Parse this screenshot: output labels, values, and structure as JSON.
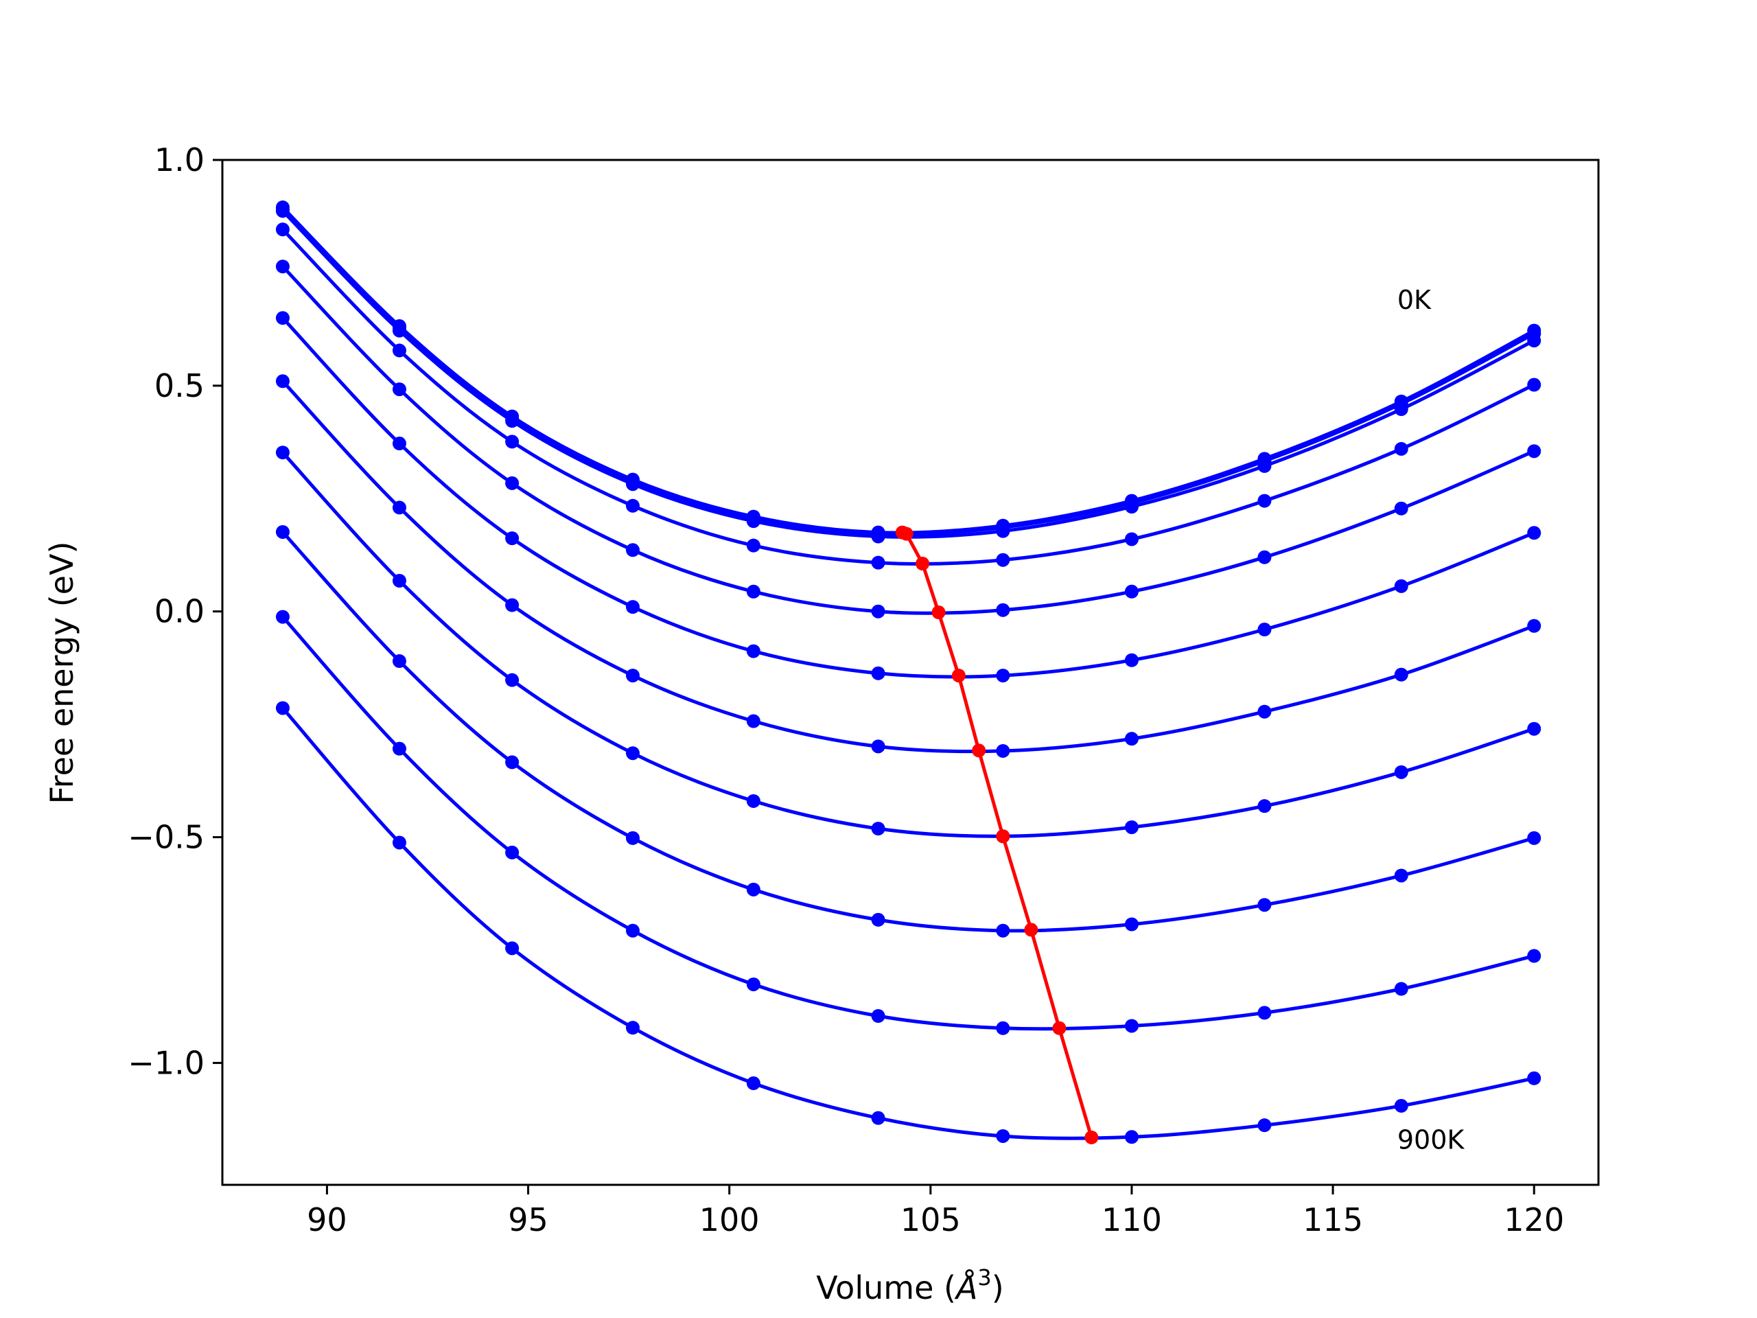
{
  "chart_data": {
    "type": "line",
    "xlabel_text": "Volume (",
    "xlabel_unit": "Å",
    "xlabel_exp": "3",
    "xlabel_close": ")",
    "ylabel": "Free energy (eV)",
    "xlim": [
      87.4,
      121.6
    ],
    "ylim": [
      -1.27,
      1.0
    ],
    "x_ticks": [
      90,
      95,
      100,
      105,
      110,
      115,
      120
    ],
    "y_ticks": [
      1.0,
      0.5,
      0.0,
      -0.5,
      -1.0
    ],
    "x_tick_labels": [
      "90",
      "95",
      "100",
      "105",
      "110",
      "115",
      "120"
    ],
    "y_tick_labels": [
      "1.0",
      "0.5",
      "0.0",
      "−0.5",
      "−1.0"
    ],
    "annotations": [
      {
        "text": "0K",
        "x": 116.6,
        "y": 0.67
      },
      {
        "text": "900K",
        "x": 116.6,
        "y": -1.19
      }
    ],
    "x": [
      88.9,
      91.8,
      94.6,
      97.6,
      100.6,
      103.7,
      106.8,
      110.0,
      113.3,
      116.7,
      120.0
    ],
    "series": [
      {
        "values": [
          0.895,
          0.632,
          0.432,
          0.292,
          0.21,
          0.175,
          0.19,
          0.245,
          0.338,
          0.465,
          0.622
        ]
      },
      {
        "values": [
          0.89,
          0.628,
          0.428,
          0.288,
          0.206,
          0.172,
          0.186,
          0.24,
          0.333,
          0.46,
          0.615
        ]
      },
      {
        "values": [
          0.887,
          0.622,
          0.422,
          0.282,
          0.2,
          0.166,
          0.178,
          0.232,
          0.322,
          0.448,
          0.6
        ]
      },
      {
        "values": [
          0.846,
          0.578,
          0.376,
          0.234,
          0.146,
          0.108,
          0.114,
          0.16,
          0.245,
          0.36,
          0.502
        ]
      },
      {
        "values": [
          0.764,
          0.492,
          0.284,
          0.136,
          0.044,
          0.0,
          0.003,
          0.044,
          0.12,
          0.228,
          0.355
        ]
      },
      {
        "values": [
          0.65,
          0.372,
          0.162,
          0.01,
          -0.088,
          -0.137,
          -0.142,
          -0.108,
          -0.04,
          0.056,
          0.174
        ]
      },
      {
        "values": [
          0.51,
          0.23,
          0.014,
          -0.142,
          -0.243,
          -0.299,
          -0.309,
          -0.282,
          -0.222,
          -0.14,
          -0.032
        ]
      },
      {
        "values": [
          0.352,
          0.068,
          -0.152,
          -0.314,
          -0.42,
          -0.481,
          -0.498,
          -0.478,
          -0.431,
          -0.356,
          -0.26
        ]
      },
      {
        "values": [
          0.176,
          -0.11,
          -0.334,
          -0.502,
          -0.616,
          -0.683,
          -0.707,
          -0.693,
          -0.65,
          -0.585,
          -0.502
        ]
      },
      {
        "values": [
          -0.012,
          -0.304,
          -0.534,
          -0.707,
          -0.826,
          -0.896,
          -0.923,
          -0.918,
          -0.889,
          -0.836,
          -0.763
        ]
      },
      {
        "values": [
          -0.214,
          -0.512,
          -0.746,
          -0.922,
          -1.045,
          -1.122,
          -1.162,
          -1.164,
          -1.138,
          -1.095,
          -1.034
        ]
      }
    ],
    "minimum_path": {
      "color": "#ff0000",
      "x": [
        104.3,
        104.4,
        104.8,
        105.2,
        105.7,
        106.2,
        106.8,
        107.5,
        108.2,
        109.0
      ],
      "y": [
        0.175,
        0.172,
        0.106,
        -0.002,
        -0.142,
        -0.308,
        -0.498,
        -0.705,
        -0.923,
        -1.165
      ]
    },
    "series_color": "#0000ff",
    "grid": false,
    "legend": "none"
  }
}
